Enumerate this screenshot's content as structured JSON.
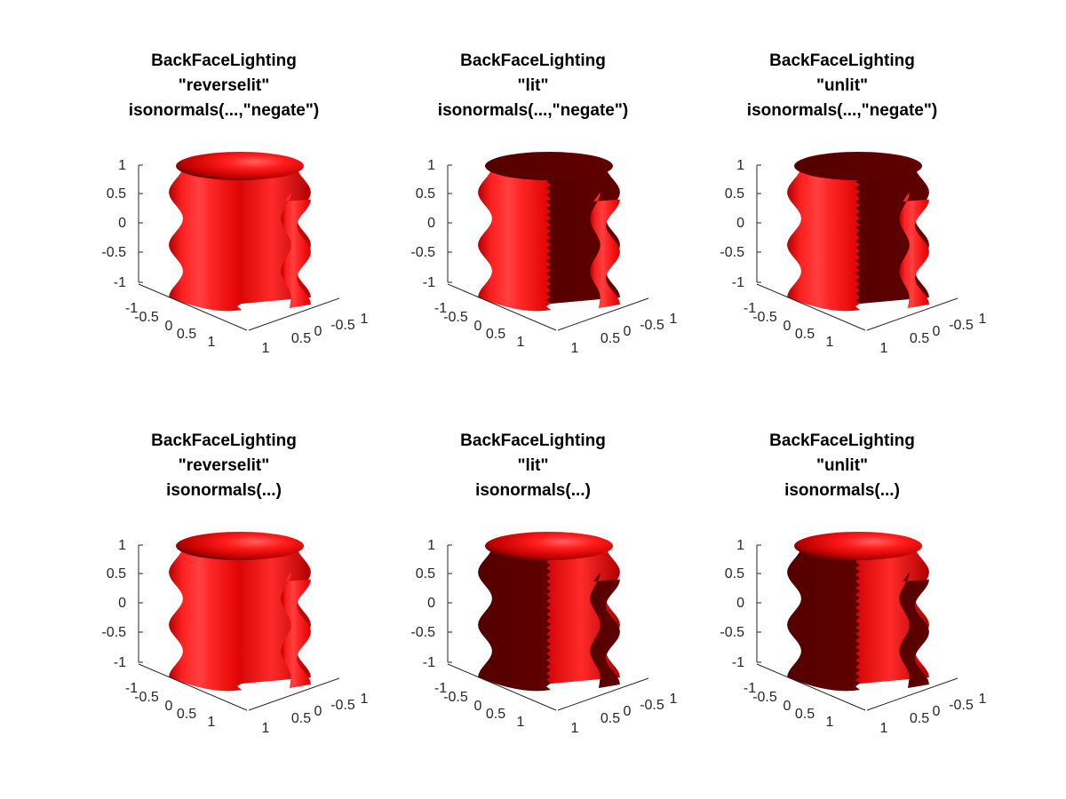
{
  "figure": {
    "background": "#ffffff",
    "colors": {
      "lit_red": "#ff1a1a",
      "mid_red": "#d40000",
      "dark_red": "#5c0000",
      "highlight": "#ffd0d0"
    }
  },
  "chart_data": [
    {
      "type": "surface3d",
      "title": [
        "BackFaceLighting",
        "\"reverselit\"",
        "isonormals(...,\"negate\")"
      ],
      "backface_lighting": "reverselit",
      "isonormals_mode": "negate",
      "xlim": [
        -1,
        1
      ],
      "ylim": [
        -1,
        1
      ],
      "zlim": [
        -1,
        1
      ],
      "z_ticks": [
        "1",
        "0.5",
        "0",
        "-0.5",
        "-1"
      ],
      "x_ticks": [
        "-1",
        "-0.5",
        "0",
        "0.5",
        "1"
      ],
      "y_ticks": [
        "1",
        "0.5",
        "0",
        "-0.5",
        "1"
      ],
      "outside_face": "lit",
      "inside_face": "lit",
      "cap_face": "lit"
    },
    {
      "type": "surface3d",
      "title": [
        "BackFaceLighting",
        "\"lit\"",
        "isonormals(...,\"negate\")"
      ],
      "backface_lighting": "lit",
      "isonormals_mode": "negate",
      "xlim": [
        -1,
        1
      ],
      "ylim": [
        -1,
        1
      ],
      "zlim": [
        -1,
        1
      ],
      "z_ticks": [
        "1",
        "0.5",
        "0",
        "-0.5",
        "-1"
      ],
      "x_ticks": [
        "-1",
        "-0.5",
        "0",
        "0.5",
        "1"
      ],
      "y_ticks": [
        "1",
        "0.5",
        "0",
        "-0.5",
        "1"
      ],
      "outside_face": "lit",
      "inside_face": "dark",
      "cap_face": "dark"
    },
    {
      "type": "surface3d",
      "title": [
        "BackFaceLighting",
        "\"unlit\"",
        "isonormals(...,\"negate\")"
      ],
      "backface_lighting": "unlit",
      "isonormals_mode": "negate",
      "xlim": [
        -1,
        1
      ],
      "ylim": [
        -1,
        1
      ],
      "zlim": [
        -1,
        1
      ],
      "z_ticks": [
        "1",
        "0.5",
        "0",
        "-0.5",
        "-1"
      ],
      "x_ticks": [
        "-1",
        "-0.5",
        "0",
        "0.5",
        "1"
      ],
      "y_ticks": [
        "1",
        "0.5",
        "0",
        "-0.5",
        "1"
      ],
      "outside_face": "lit",
      "inside_face": "dark",
      "cap_face": "dark"
    },
    {
      "type": "surface3d",
      "title": [
        "BackFaceLighting",
        "\"reverselit\"",
        "isonormals(...)"
      ],
      "backface_lighting": "reverselit",
      "isonormals_mode": "default",
      "xlim": [
        -1,
        1
      ],
      "ylim": [
        -1,
        1
      ],
      "zlim": [
        -1,
        1
      ],
      "z_ticks": [
        "1",
        "0.5",
        "0",
        "-0.5",
        "-1"
      ],
      "x_ticks": [
        "-1",
        "-0.5",
        "0",
        "0.5",
        "1"
      ],
      "y_ticks": [
        "1",
        "0.5",
        "0",
        "-0.5",
        "1"
      ],
      "outside_face": "lit",
      "inside_face": "lit",
      "cap_face": "lit"
    },
    {
      "type": "surface3d",
      "title": [
        "BackFaceLighting",
        "\"lit\"",
        "isonormals(...)"
      ],
      "backface_lighting": "lit",
      "isonormals_mode": "default",
      "xlim": [
        -1,
        1
      ],
      "ylim": [
        -1,
        1
      ],
      "zlim": [
        -1,
        1
      ],
      "z_ticks": [
        "1",
        "0.5",
        "0",
        "-0.5",
        "-1"
      ],
      "x_ticks": [
        "-1",
        "-0.5",
        "0",
        "0.5",
        "1"
      ],
      "y_ticks": [
        "1",
        "0.5",
        "0",
        "-0.5",
        "1"
      ],
      "outside_face": "dark",
      "inside_face": "lit",
      "cap_face": "lit"
    },
    {
      "type": "surface3d",
      "title": [
        "BackFaceLighting",
        "\"unlit\"",
        "isonormals(...)"
      ],
      "backface_lighting": "unlit",
      "isonormals_mode": "default",
      "xlim": [
        -1,
        1
      ],
      "ylim": [
        -1,
        1
      ],
      "zlim": [
        -1,
        1
      ],
      "z_ticks": [
        "1",
        "0.5",
        "0",
        "-0.5",
        "-1"
      ],
      "x_ticks": [
        "-1",
        "-0.5",
        "0",
        "0.5",
        "1"
      ],
      "y_ticks": [
        "1",
        "0.5",
        "0",
        "-0.5",
        "1"
      ],
      "outside_face": "dark",
      "inside_face": "lit",
      "cap_face": "lit"
    }
  ]
}
